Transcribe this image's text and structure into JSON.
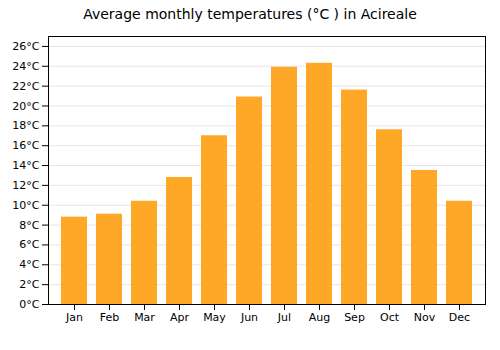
{
  "chart_data": {
    "type": "bar",
    "title": "Average monthly temperatures (°C ) in Acireale",
    "categories": [
      "Jan",
      "Feb",
      "Mar",
      "Apr",
      "May",
      "Jun",
      "Jul",
      "Aug",
      "Sep",
      "Oct",
      "Nov",
      "Dec"
    ],
    "values": [
      8.8,
      9.1,
      10.4,
      12.8,
      17.0,
      20.9,
      23.9,
      24.3,
      21.6,
      17.6,
      13.5,
      10.4
    ],
    "color": "#FFA726",
    "ylim": [
      0,
      27
    ],
    "yticks": [
      {
        "value": 0,
        "label": "0°C"
      },
      {
        "value": 2,
        "label": "2°C"
      },
      {
        "value": 4,
        "label": "4°C"
      },
      {
        "value": 6,
        "label": "6°C"
      },
      {
        "value": 8,
        "label": "8°C"
      },
      {
        "value": 10,
        "label": "10°C"
      },
      {
        "value": 12,
        "label": "12°C"
      },
      {
        "value": 14,
        "label": "14°C"
      },
      {
        "value": 16,
        "label": "16°C"
      },
      {
        "value": 18,
        "label": "18°C"
      },
      {
        "value": 20,
        "label": "20°C"
      },
      {
        "value": 22,
        "label": "22°C"
      },
      {
        "value": 24,
        "label": "24°C"
      },
      {
        "value": 26,
        "label": "26°C"
      }
    ],
    "grid": true
  }
}
